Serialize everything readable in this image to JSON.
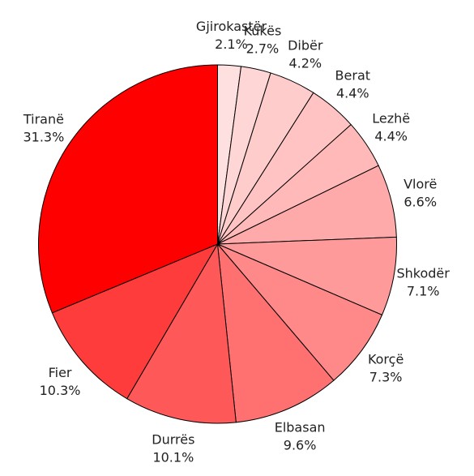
{
  "chart_data": {
    "type": "pie",
    "categories": [
      "Gjirokastër",
      "Kukës",
      "Dibër",
      "Berat",
      "Lezhë",
      "Vlorë",
      "Shkodër",
      "Korçë",
      "Elbasan",
      "Durrës",
      "Fier",
      "Tiranë"
    ],
    "values": [
      2.1,
      2.7,
      4.2,
      4.4,
      4.4,
      6.6,
      7.1,
      7.3,
      9.6,
      10.1,
      10.3,
      31.3
    ],
    "value_labels": [
      "2.1%",
      "2.7%",
      "4.2%",
      "4.4%",
      "4.4%",
      "6.6%",
      "7.1%",
      "7.3%",
      "9.6%",
      "10.1%",
      "10.3%",
      "31.3%"
    ],
    "colors": [
      "#ffe0e0",
      "#ffd6d6",
      "#ffcccc",
      "#ffc3c3",
      "#ffb9b9",
      "#ffaaaa",
      "#ff9a9a",
      "#ff8888",
      "#ff7171",
      "#ff5858",
      "#ff3c3c",
      "#ff0000"
    ]
  }
}
